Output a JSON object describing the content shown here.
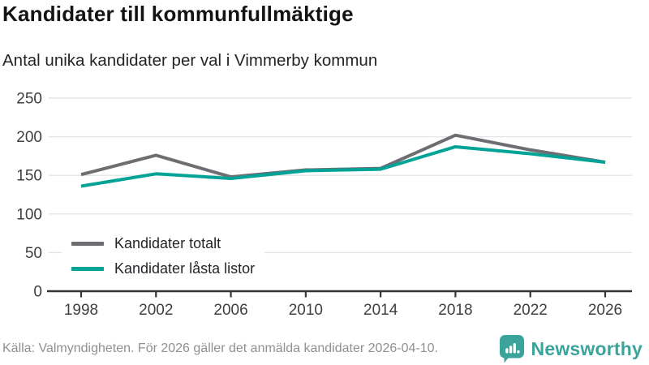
{
  "header": {
    "title": "Kandidater till kommunfullmäktige",
    "subtitle": "Antal unika kandidater per val i Vimmerby kommun"
  },
  "chart_data": {
    "type": "line",
    "x": [
      1998,
      2002,
      2006,
      2010,
      2014,
      2018,
      2022,
      2026
    ],
    "series": [
      {
        "name": "Kandidater totalt",
        "color": "#6e6e72",
        "values": [
          151,
          176,
          148,
          157,
          159,
          202,
          183,
          167
        ]
      },
      {
        "name": "Kandidater låsta listor",
        "color": "#00a396",
        "values": [
          136,
          152,
          146,
          156,
          158,
          187,
          178,
          167
        ]
      }
    ],
    "title": "Kandidater till kommunfullmäktige",
    "subtitle": "Antal unika kandidater per val i Vimmerby kommun",
    "xlabel": "",
    "ylabel": "",
    "ylim": [
      0,
      250
    ],
    "yticks": [
      0,
      50,
      100,
      150,
      200,
      250
    ],
    "grid": true,
    "legend_position": "inside bottom-left"
  },
  "footer": {
    "source": "Källa: Valmyndigheten. För 2026 gäller det anmälda kandidater 2026-04-10.",
    "brand": "Newsworthy"
  },
  "colors": {
    "series_total": "#6e6e72",
    "series_locked": "#00a396",
    "brand_teal": "#3aa39b",
    "grid": "#e3e4e5",
    "axis": "#323437",
    "tick_text": "#3d3f42",
    "muted_text": "#8e9093"
  }
}
